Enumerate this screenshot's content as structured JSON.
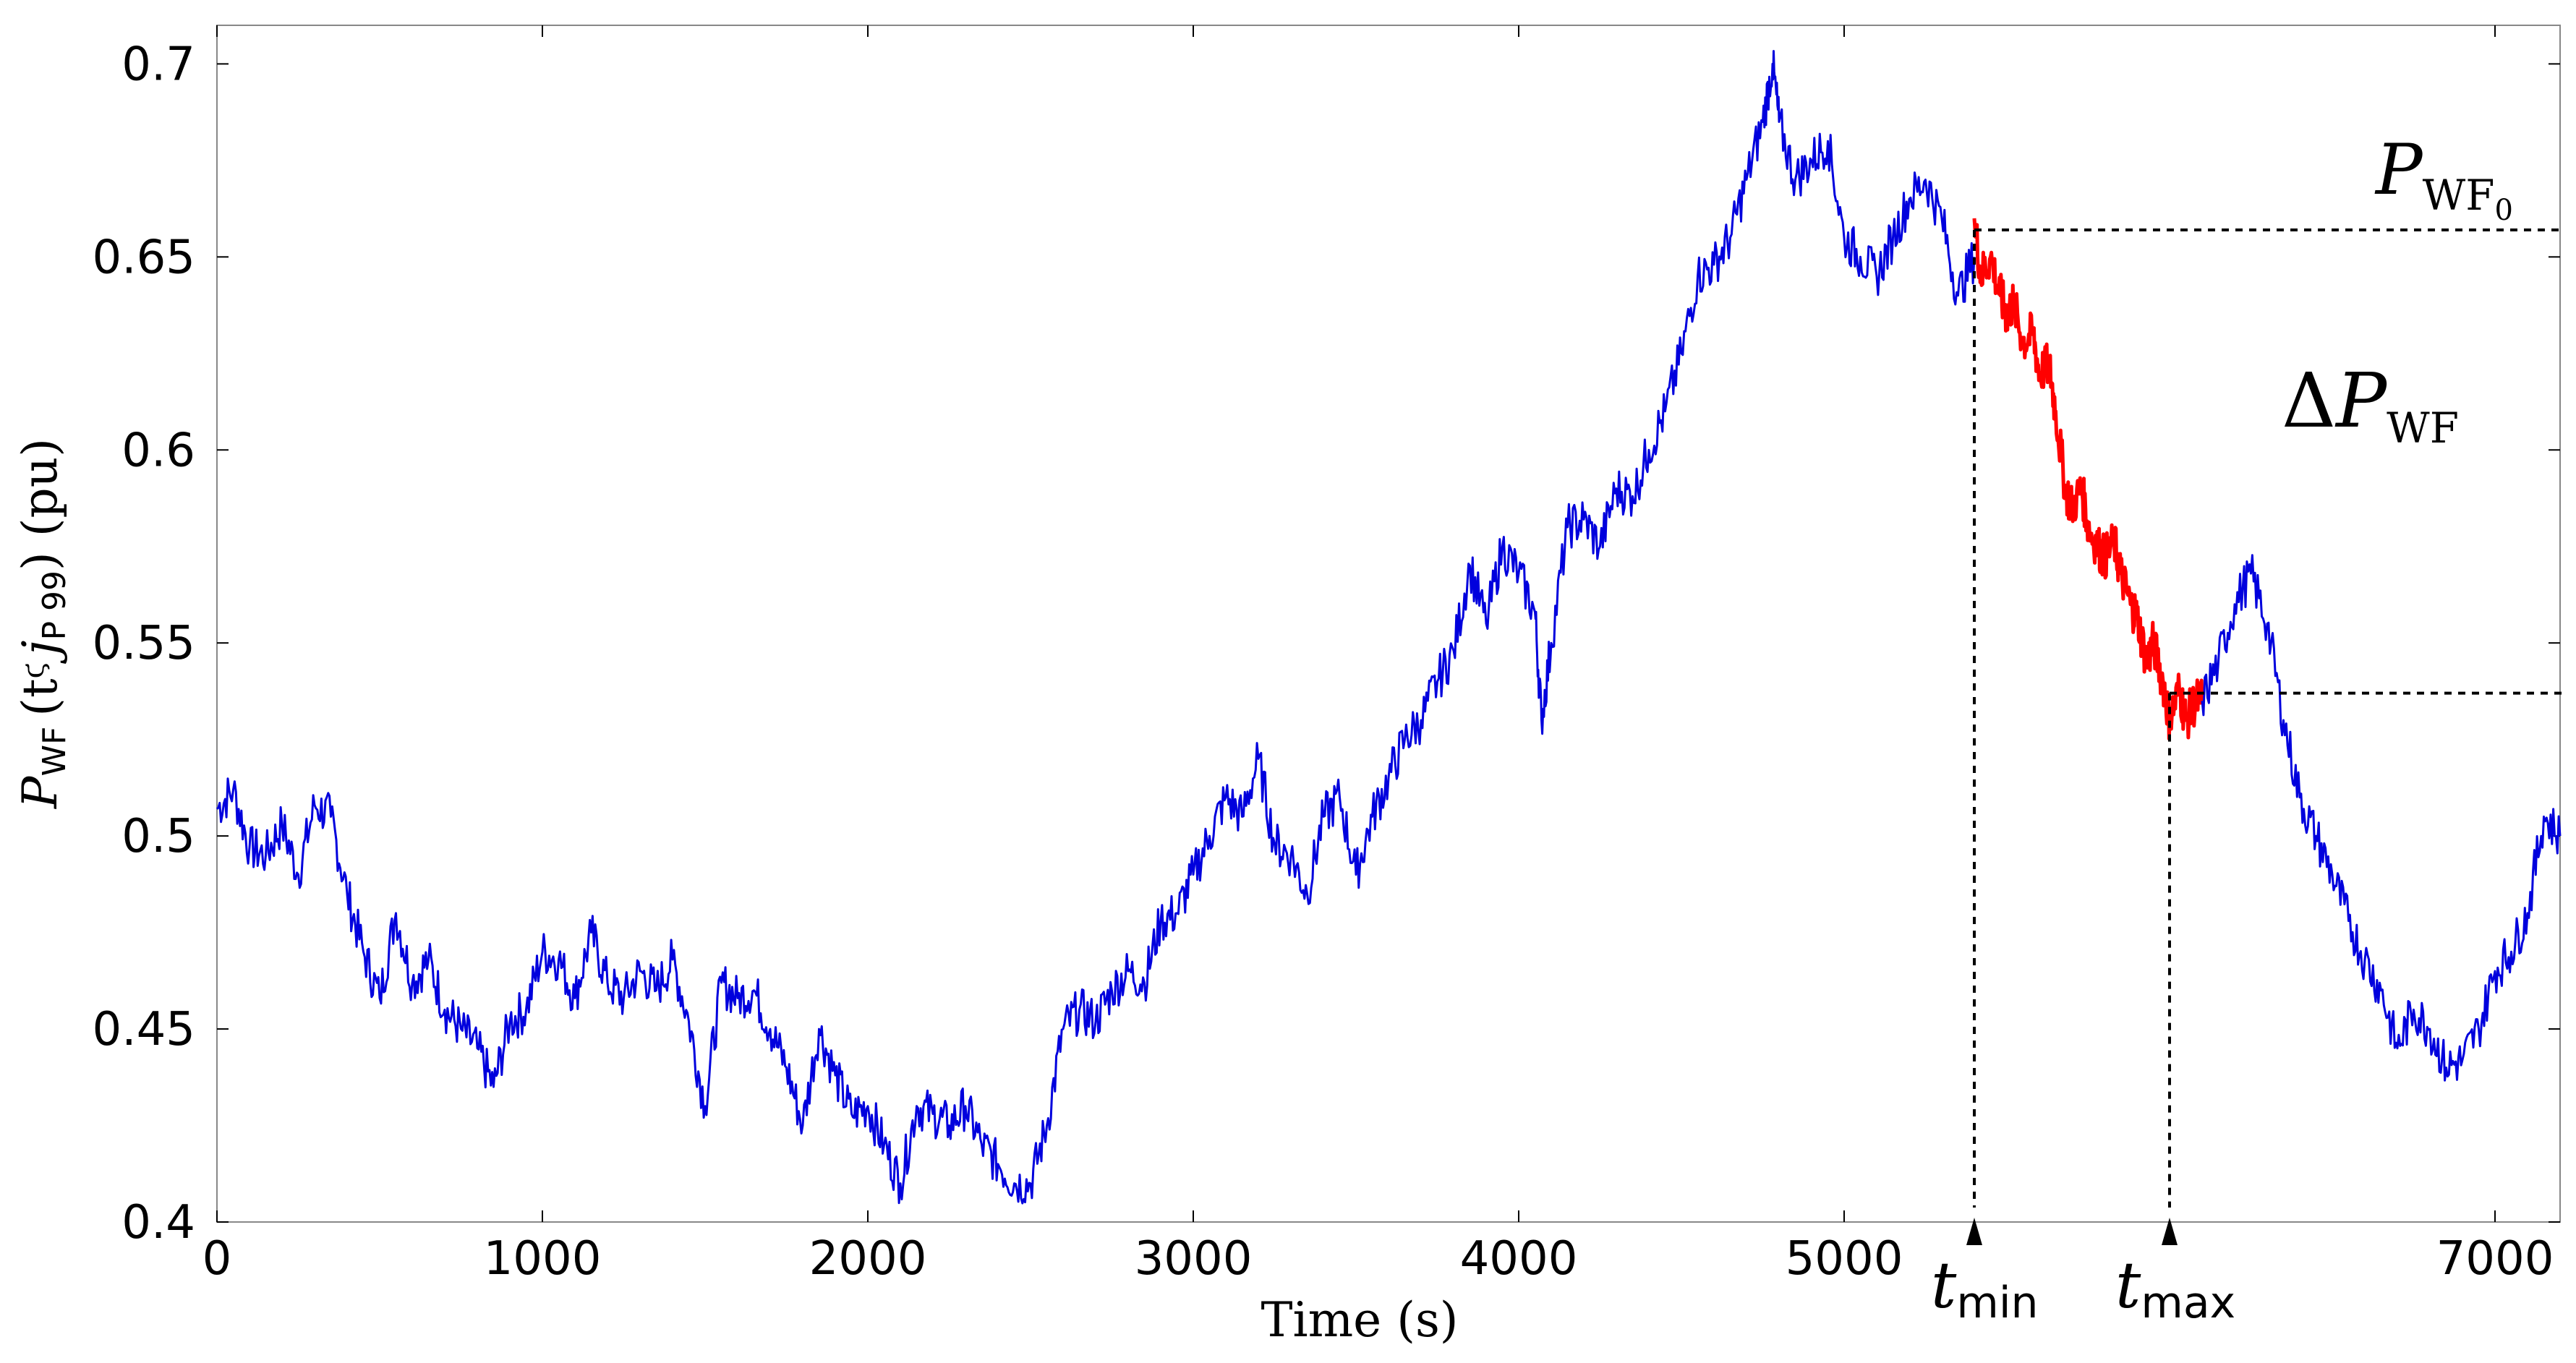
{
  "chart_data": {
    "type": "line",
    "title": "",
    "xlabel": "Time (s)",
    "ylabel": {
      "base": "P",
      "sub": "WF",
      "args": "(t",
      "glyph": "ϛ",
      "j": "j",
      "jsub": "P 99",
      "tail": ") (pu)"
    },
    "xlim": [
      0,
      7200
    ],
    "ylim": [
      0.4,
      0.71
    ],
    "xticks": [
      0,
      1000,
      2000,
      3000,
      4000,
      5000,
      7000
    ],
    "xtick_labels": [
      "0",
      "1000",
      "2000",
      "3000",
      "4000",
      "5000",
      "7000"
    ],
    "yticks": [
      0.4,
      0.45,
      0.5,
      0.55,
      0.6,
      0.65,
      0.7
    ],
    "ytick_labels": [
      "0.4",
      "0.45",
      "0.5",
      "0.55",
      "0.6",
      "0.65",
      "0.7"
    ],
    "grid": false,
    "series": [
      {
        "color": "#0000dd",
        "x": [
          0,
          50,
          100,
          150,
          200,
          250,
          300,
          350,
          400,
          450,
          500,
          550,
          600,
          650,
          700,
          750,
          800,
          850,
          900,
          950,
          1000,
          1050,
          1100,
          1150,
          1200,
          1250,
          1300,
          1350,
          1400,
          1450,
          1500,
          1550,
          1600,
          1650,
          1700,
          1750,
          1800,
          1850,
          1900,
          1950,
          2000,
          2050,
          2100,
          2150,
          2200,
          2250,
          2300,
          2350,
          2400,
          2450,
          2500,
          2550,
          2600,
          2650,
          2700,
          2750,
          2800,
          2850,
          2900,
          2950,
          3000,
          3050,
          3100,
          3150,
          3200,
          3250,
          3300,
          3350,
          3400,
          3450,
          3500,
          3550,
          3600,
          3650,
          3700,
          3750,
          3800,
          3850,
          3900,
          3950,
          4000,
          4050,
          4070,
          4100,
          4150,
          4200,
          4250,
          4300,
          4350,
          4400,
          4450,
          4500,
          4550,
          4600,
          4650,
          4700,
          4750,
          4780,
          4800,
          4850,
          4900,
          4950,
          5000,
          5050,
          5100,
          5150,
          5200,
          5250,
          5300,
          5350,
          5400
        ],
        "y": [
          0.507,
          0.512,
          0.497,
          0.495,
          0.503,
          0.49,
          0.508,
          0.505,
          0.485,
          0.47,
          0.458,
          0.48,
          0.462,
          0.468,
          0.455,
          0.45,
          0.445,
          0.435,
          0.452,
          0.455,
          0.47,
          0.468,
          0.458,
          0.475,
          0.462,
          0.458,
          0.465,
          0.46,
          0.468,
          0.452,
          0.43,
          0.462,
          0.458,
          0.46,
          0.45,
          0.44,
          0.425,
          0.45,
          0.438,
          0.428,
          0.43,
          0.42,
          0.41,
          0.43,
          0.428,
          0.425,
          0.43,
          0.42,
          0.415,
          0.41,
          0.41,
          0.425,
          0.45,
          0.455,
          0.452,
          0.46,
          0.465,
          0.462,
          0.478,
          0.48,
          0.49,
          0.5,
          0.51,
          0.505,
          0.52,
          0.498,
          0.495,
          0.485,
          0.505,
          0.51,
          0.49,
          0.505,
          0.515,
          0.525,
          0.53,
          0.54,
          0.548,
          0.57,
          0.555,
          0.575,
          0.568,
          0.558,
          0.53,
          0.55,
          0.58,
          0.582,
          0.575,
          0.59,
          0.588,
          0.6,
          0.61,
          0.625,
          0.645,
          0.648,
          0.655,
          0.67,
          0.685,
          0.7,
          0.685,
          0.67,
          0.675,
          0.68,
          0.655,
          0.65,
          0.645,
          0.655,
          0.665,
          0.67,
          0.66,
          0.64,
          0.65
        ]
      },
      {
        "color": "#ff0000",
        "x": [
          5400,
          5420,
          5450,
          5480,
          5500,
          5520,
          5550,
          5580,
          5600,
          5630,
          5650,
          5680,
          5700,
          5730,
          5750,
          5780,
          5800,
          5830,
          5850,
          5880,
          5900,
          5930,
          5950,
          5980,
          6000,
          6030,
          6050,
          6080,
          6100
        ],
        "y": [
          0.66,
          0.645,
          0.65,
          0.64,
          0.635,
          0.638,
          0.628,
          0.63,
          0.62,
          0.622,
          0.61,
          0.59,
          0.585,
          0.59,
          0.58,
          0.575,
          0.572,
          0.576,
          0.568,
          0.56,
          0.557,
          0.545,
          0.55,
          0.54,
          0.53,
          0.538,
          0.53,
          0.535,
          0.535
        ]
      },
      {
        "color": "#0000dd",
        "x": [
          6100,
          6150,
          6200,
          6250,
          6300,
          6350,
          6400,
          6450,
          6500,
          6550,
          6600,
          6650,
          6700,
          6750,
          6800,
          6850,
          6900,
          6950,
          7000,
          7050,
          7100,
          7150,
          7200
        ],
        "y": [
          0.535,
          0.545,
          0.56,
          0.568,
          0.555,
          0.53,
          0.51,
          0.5,
          0.49,
          0.478,
          0.468,
          0.46,
          0.445,
          0.455,
          0.45,
          0.44,
          0.442,
          0.45,
          0.465,
          0.47,
          0.48,
          0.505,
          0.5
        ]
      }
    ],
    "reference_lines": {
      "p0": 0.657,
      "pmax": 0.537,
      "t_min": 5400,
      "t_max": 6000
    },
    "annotations": {
      "pwf0": {
        "base": "P",
        "sub": "WF",
        "subsub": "0"
      },
      "delta": {
        "sym": "Δ",
        "base": "P",
        "sub": "WF"
      },
      "tmin": {
        "base": "t",
        "sub": "min"
      },
      "tmax": {
        "base": "t",
        "sub": "max"
      }
    }
  }
}
